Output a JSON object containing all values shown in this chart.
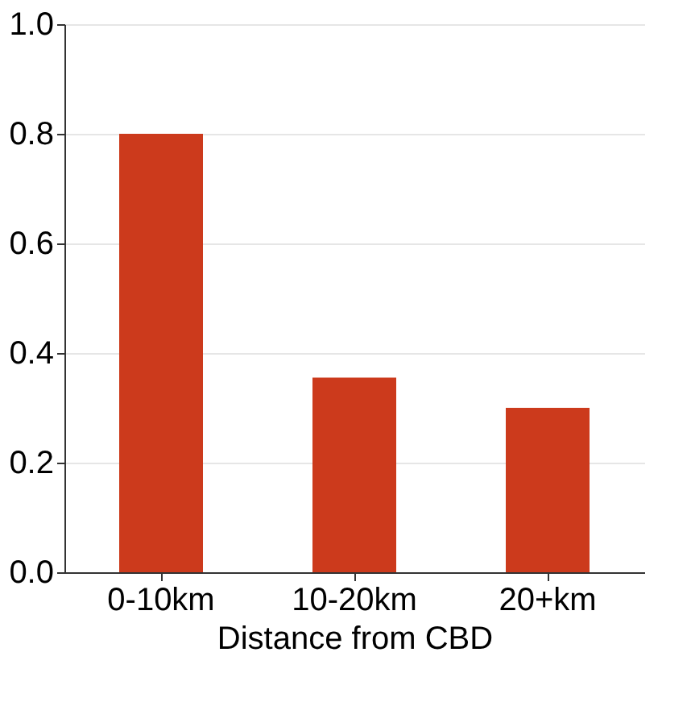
{
  "chart_data": {
    "type": "bar",
    "xlabel": "Distance from CBD",
    "categories": [
      "0-10km",
      "10-20km",
      "20+km"
    ],
    "values": [
      0.8,
      0.355,
      0.3
    ],
    "color": "#cc3a1c",
    "ylim": [
      0,
      1
    ],
    "yticks": [
      {
        "value": 0,
        "label": "0.0"
      },
      0.2,
      0.4,
      0.6,
      0.8,
      {
        "value": 1,
        "label": "1.0"
      }
    ],
    "grid": "y"
  }
}
